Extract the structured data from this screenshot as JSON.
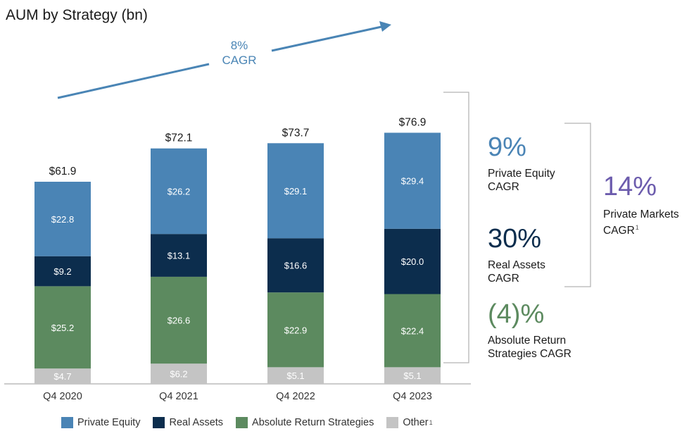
{
  "title": "AUM by Strategy (bn)",
  "trend": {
    "value": "8%",
    "label": "CAGR"
  },
  "colors": {
    "private_equity": "#4a84b5",
    "real_assets": "#0c2d4d",
    "absolute_return": "#5c8a5f",
    "other": "#c4c4c4",
    "pe_cagr": "#4a84b5",
    "ra_cagr": "#0c2d4d",
    "ar_cagr": "#5c8a5f",
    "pm_cagr": "#6c5cad"
  },
  "chart_data": {
    "type": "bar",
    "stacked": true,
    "title": "AUM by Strategy (bn)",
    "categories": [
      "Q4 2020",
      "Q4 2021",
      "Q4 2022",
      "Q4 2023"
    ],
    "totals": [
      61.9,
      72.1,
      73.7,
      76.9
    ],
    "total_labels": [
      "$61.9",
      "$72.1",
      "$73.7",
      "$76.9"
    ],
    "series": [
      {
        "name": "Other",
        "key": "other",
        "values": [
          4.7,
          6.2,
          5.1,
          5.1
        ],
        "labels": [
          "$4.7",
          "$6.2",
          "$5.1",
          "$5.1"
        ]
      },
      {
        "name": "Absolute Return Strategies",
        "key": "absolute_return",
        "values": [
          25.2,
          26.6,
          22.9,
          22.4
        ],
        "labels": [
          "$25.2",
          "$26.6",
          "$22.9",
          "$22.4"
        ]
      },
      {
        "name": "Real Assets",
        "key": "real_assets",
        "values": [
          9.2,
          13.1,
          16.6,
          20.0
        ],
        "labels": [
          "$9.2",
          "$13.1",
          "$16.6",
          "$20.0"
        ]
      },
      {
        "name": "Private Equity",
        "key": "private_equity",
        "values": [
          22.8,
          26.2,
          29.1,
          29.4
        ],
        "labels": [
          "$22.8",
          "$26.2",
          "$29.1",
          "$29.4"
        ]
      }
    ],
    "ylim": [
      0,
      110
    ]
  },
  "cagr": {
    "private_equity": {
      "value": "9%",
      "label_line1": "Private Equity",
      "label_line2": "CAGR"
    },
    "real_assets": {
      "value": "30%",
      "label_line1": "Real Assets",
      "label_line2": "CAGR"
    },
    "absolute_return": {
      "value": "(4)%",
      "label_line1": "Absolute Return",
      "label_line2": "Strategies CAGR"
    },
    "private_markets": {
      "value": "14%",
      "label_line1": "Private Markets",
      "label_line2": "CAGR",
      "footnote": "1"
    }
  },
  "legend": [
    {
      "name": "Private Equity",
      "key": "private_equity"
    },
    {
      "name": "Real Assets",
      "key": "real_assets"
    },
    {
      "name": "Absolute Return Strategies",
      "key": "absolute_return"
    },
    {
      "name": "Other",
      "key": "other",
      "footnote": "1"
    }
  ]
}
